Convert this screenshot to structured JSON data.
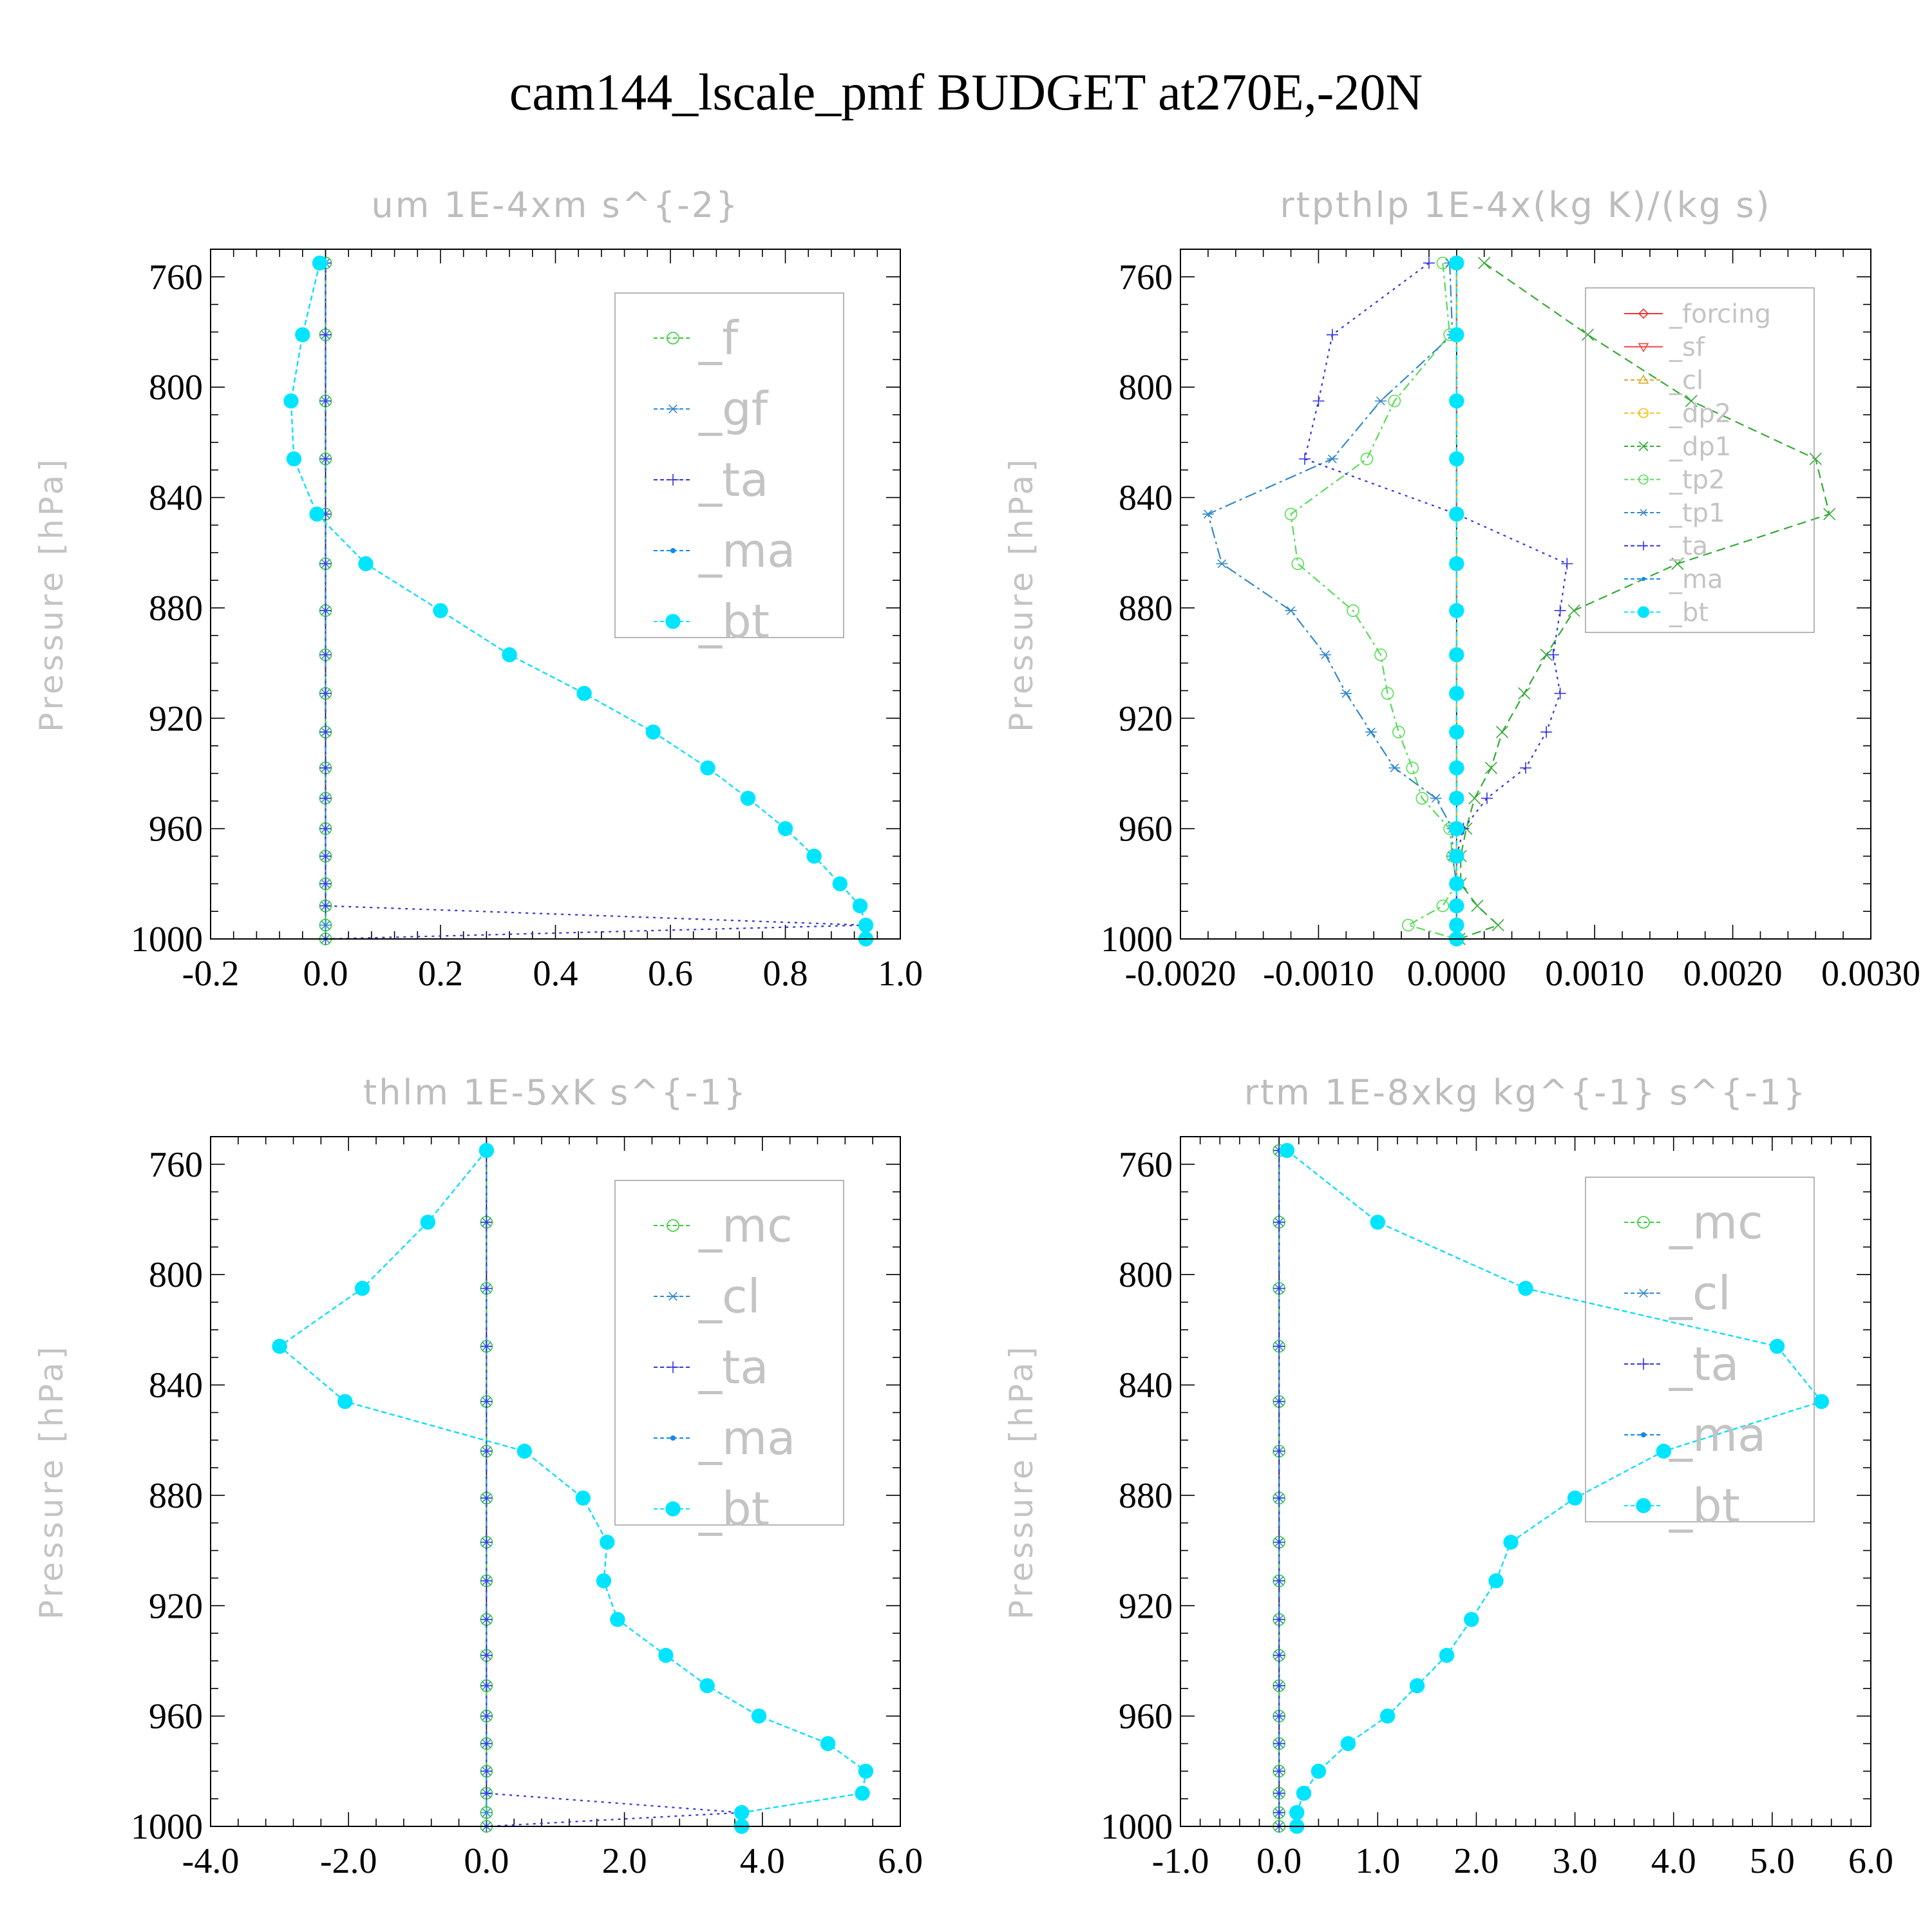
{
  "figure_title": "cam144_lscale_pmf  BUDGET at270E,-20N",
  "colors": {
    "_f": "#33cc33",
    "_gf": "#3388cc",
    "_ta": "#3333dd",
    "_ma": "#1188ee",
    "_bt": "#00e5ff",
    "_forcing": "#ee3333",
    "_sf": "#ee4444",
    "_cl": "#ddaa22",
    "_dp2": "#ffbb00",
    "_dp1": "#33aa33",
    "_tp2": "#55dd55",
    "_tp1": "#3388cc",
    "_mc": "#33cc33",
    "_cl_rtm": "#3388cc"
  },
  "chart_data": [
    {
      "type": "line",
      "title": "um   1E-4xm s^{-2}",
      "ylabel": "Pressure [hPa]",
      "xlim": [
        -0.2,
        1.0
      ],
      "ylim": [
        1000,
        750
      ],
      "xticks": [
        "-0.2",
        "0.0",
        "0.2",
        "0.4",
        "0.6",
        "0.8",
        "1.0"
      ],
      "yticks": [
        "760",
        "800",
        "840",
        "880",
        "920",
        "960",
        "1000"
      ],
      "legend_position": "top-right",
      "pressure": [
        755,
        781,
        805,
        826,
        846,
        864,
        881,
        897,
        911,
        925,
        938,
        949,
        960,
        970,
        980,
        988,
        995,
        1000
      ],
      "series": [
        {
          "name": "_f",
          "marker": "circle",
          "values": [
            0,
            0,
            0,
            0,
            0,
            0,
            0,
            0,
            0,
            0,
            0,
            0,
            0,
            0,
            0,
            0,
            0,
            0
          ]
        },
        {
          "name": "_gf",
          "marker": "star",
          "values": [
            0,
            0,
            0,
            0,
            0,
            0,
            0,
            0,
            0,
            0,
            0,
            0,
            0,
            0,
            0,
            0,
            0,
            0
          ]
        },
        {
          "name": "_ta",
          "marker": "plus",
          "values": [
            0,
            0,
            0,
            0,
            0,
            0,
            0,
            0,
            0,
            0,
            0,
            0,
            0,
            0,
            0,
            0,
            0.94,
            0
          ]
        },
        {
          "name": "_ma",
          "marker": "dot",
          "values": [
            -0.01,
            -0.04,
            -0.06,
            -0.055,
            -0.015,
            0.07,
            0.2,
            0.32,
            0.45,
            0.57,
            0.665,
            0.735,
            0.8,
            0.85,
            0.895,
            0.93,
            0.94,
            0.94
          ]
        },
        {
          "name": "_bt",
          "marker": "filled-circle",
          "values": [
            -0.01,
            -0.04,
            -0.06,
            -0.055,
            -0.015,
            0.07,
            0.2,
            0.32,
            0.45,
            0.57,
            0.665,
            0.735,
            0.8,
            0.85,
            0.895,
            0.93,
            0.94,
            0.94
          ]
        }
      ]
    },
    {
      "type": "line",
      "title": "rtpthlp   1E-4x(kg K)/(kg s)",
      "ylabel": "Pressure [hPa]",
      "xlim": [
        -0.002,
        0.003
      ],
      "ylim": [
        1000,
        750
      ],
      "xticks": [
        "-0.0020",
        "-0.0010",
        "0.0000",
        "0.0010",
        "0.0020",
        "0.0030"
      ],
      "yticks": [
        "760",
        "800",
        "840",
        "880",
        "920",
        "960",
        "1000"
      ],
      "legend_position": "top-right",
      "pressure": [
        755,
        781,
        805,
        826,
        846,
        864,
        881,
        897,
        911,
        925,
        938,
        949,
        960,
        970,
        980,
        988,
        995,
        1000
      ],
      "series": [
        {
          "name": "_forcing",
          "marker": "diamond",
          "values": [
            0,
            0,
            0,
            0,
            0,
            0,
            0,
            0,
            0,
            0,
            0,
            0,
            0,
            0,
            0,
            0,
            0,
            0
          ]
        },
        {
          "name": "_sf",
          "marker": "triangle-down",
          "values": [
            0,
            0,
            0,
            0,
            0,
            0,
            0,
            0,
            0,
            0,
            0,
            0,
            0,
            0,
            0,
            0,
            0,
            0
          ]
        },
        {
          "name": "_cl",
          "marker": "triangle-up",
          "values": [
            0,
            0,
            0,
            0,
            0,
            0,
            0,
            0,
            0,
            0,
            0,
            0,
            0,
            0,
            0,
            0,
            0,
            0
          ]
        },
        {
          "name": "_dp2",
          "marker": "circle",
          "values": [
            0,
            0,
            0,
            0,
            0,
            0,
            0,
            0,
            0,
            0,
            0,
            0,
            0,
            0,
            0,
            0,
            0,
            0
          ]
        },
        {
          "name": "_dp1",
          "marker": "x",
          "values": [
            0.0002,
            0.00095,
            0.0017,
            0.0026,
            0.0027,
            0.0016,
            0.00085,
            0.00065,
            0.00049,
            0.00033,
            0.00025,
            0.00013,
            7e-05,
            3e-05,
            3e-05,
            0.00015,
            0.0003,
            2e-05
          ]
        },
        {
          "name": "_tp2",
          "marker": "circle",
          "values": [
            -0.0001,
            -5e-05,
            -0.00045,
            -0.00065,
            -0.0012,
            -0.00115,
            -0.00075,
            -0.00055,
            -0.0005,
            -0.00042,
            -0.00032,
            -0.00025,
            -5e-05,
            -3e-05,
            0,
            -0.0001,
            -0.00035,
            0
          ]
        },
        {
          "name": "_tp1",
          "marker": "star",
          "values": [
            -5e-05,
            -3e-05,
            -0.00055,
            -0.0009,
            -0.0018,
            -0.0017,
            -0.0012,
            -0.00095,
            -0.0008,
            -0.00062,
            -0.00045,
            -0.00015,
            -3e-05,
            -3e-05,
            0,
            0,
            0,
            0
          ]
        },
        {
          "name": "_ta",
          "marker": "plus",
          "values": [
            -0.0002,
            -0.0009,
            -0.001,
            -0.0011,
            0,
            0.0008,
            0.00075,
            0.0007,
            0.00075,
            0.00065,
            0.0005,
            0.00022,
            5e-05,
            0,
            0,
            0,
            0,
            0
          ]
        },
        {
          "name": "_ma",
          "marker": "dot",
          "values": [
            0,
            0,
            0,
            0,
            0,
            0,
            0,
            0,
            0,
            0,
            0,
            0,
            0,
            0,
            0,
            0,
            0,
            0
          ]
        },
        {
          "name": "_bt",
          "marker": "filled-circle",
          "values": [
            0,
            0,
            0,
            0,
            0,
            0,
            0,
            0,
            0,
            0,
            0,
            0,
            0,
            0,
            0,
            0,
            0,
            0
          ]
        }
      ]
    },
    {
      "type": "line",
      "title": "thlm   1E-5xK s^{-1}",
      "ylabel": "Pressure [hPa]",
      "xlim": [
        -4.0,
        6.0
      ],
      "ylim": [
        1000,
        750
      ],
      "xticks": [
        "-4.0",
        "-2.0",
        "0.0",
        "2.0",
        "4.0",
        "6.0"
      ],
      "yticks": [
        "760",
        "800",
        "840",
        "880",
        "920",
        "960",
        "1000"
      ],
      "legend_position": "top-right",
      "pressure": [
        755,
        781,
        805,
        826,
        846,
        864,
        881,
        897,
        911,
        925,
        938,
        949,
        960,
        970,
        980,
        988,
        995,
        1000
      ],
      "series": [
        {
          "name": "_mc",
          "marker": "circle",
          "values": [
            0,
            0,
            0,
            0,
            0,
            0,
            0,
            0,
            0,
            0,
            0,
            0,
            0,
            0,
            0,
            0,
            0,
            0
          ]
        },
        {
          "name": "_cl",
          "marker": "star",
          "values": [
            0,
            0,
            0,
            0,
            0,
            0,
            0,
            0,
            0,
            0,
            0,
            0,
            0,
            0,
            0,
            0,
            0,
            0
          ]
        },
        {
          "name": "_ta",
          "marker": "plus",
          "values": [
            0,
            0,
            0,
            0,
            0,
            0,
            0,
            0,
            0,
            0,
            0,
            0,
            0,
            0,
            0,
            0,
            3.7,
            0
          ]
        },
        {
          "name": "_ma",
          "marker": "dot",
          "values": [
            0,
            -0.85,
            -1.8,
            -3.0,
            -2.05,
            0.55,
            1.4,
            1.75,
            1.7,
            1.9,
            2.6,
            3.2,
            3.95,
            4.95,
            5.5,
            5.45,
            3.7,
            3.7
          ]
        },
        {
          "name": "_bt",
          "marker": "filled-circle",
          "values": [
            0,
            -0.85,
            -1.8,
            -3.0,
            -2.05,
            0.55,
            1.4,
            1.75,
            1.7,
            1.9,
            2.6,
            3.2,
            3.95,
            4.95,
            5.5,
            5.45,
            3.7,
            3.7
          ]
        }
      ]
    },
    {
      "type": "line",
      "title": "rtm   1E-8xkg kg^{-1} s^{-1}",
      "ylabel": "Pressure [hPa]",
      "xlim": [
        -1.0,
        6.0
      ],
      "ylim": [
        1000,
        750
      ],
      "xticks": [
        "-1.0",
        "0.0",
        "1.0",
        "2.0",
        "3.0",
        "4.0",
        "5.0",
        "6.0"
      ],
      "yticks": [
        "760",
        "800",
        "840",
        "880",
        "920",
        "960",
        "1000"
      ],
      "legend_position": "top-right",
      "pressure": [
        755,
        781,
        805,
        826,
        846,
        864,
        881,
        897,
        911,
        925,
        938,
        949,
        960,
        970,
        980,
        988,
        995,
        1000
      ],
      "series": [
        {
          "name": "_mc",
          "marker": "circle",
          "values": [
            0,
            0,
            0,
            0,
            0,
            0,
            0,
            0,
            0,
            0,
            0,
            0,
            0,
            0,
            0,
            0,
            0,
            0
          ]
        },
        {
          "name": "_cl",
          "marker": "star",
          "values": [
            0,
            0,
            0,
            0,
            0,
            0,
            0,
            0,
            0,
            0,
            0,
            0,
            0,
            0,
            0,
            0,
            0,
            0
          ]
        },
        {
          "name": "_ta",
          "marker": "plus",
          "values": [
            0,
            0,
            0,
            0,
            0,
            0,
            0,
            0,
            0,
            0,
            0,
            0,
            0,
            0,
            0,
            0,
            0,
            0
          ]
        },
        {
          "name": "_ma",
          "marker": "dot",
          "values": [
            0.08,
            1.0,
            2.5,
            5.05,
            5.5,
            3.9,
            3.0,
            2.35,
            2.2,
            1.95,
            1.7,
            1.4,
            1.1,
            0.7,
            0.4,
            0.25,
            0.18,
            0.18
          ]
        },
        {
          "name": "_bt",
          "marker": "filled-circle",
          "values": [
            0.08,
            1.0,
            2.5,
            5.05,
            5.5,
            3.9,
            3.0,
            2.35,
            2.2,
            1.95,
            1.7,
            1.4,
            1.1,
            0.7,
            0.4,
            0.25,
            0.18,
            0.18
          ]
        }
      ]
    }
  ]
}
